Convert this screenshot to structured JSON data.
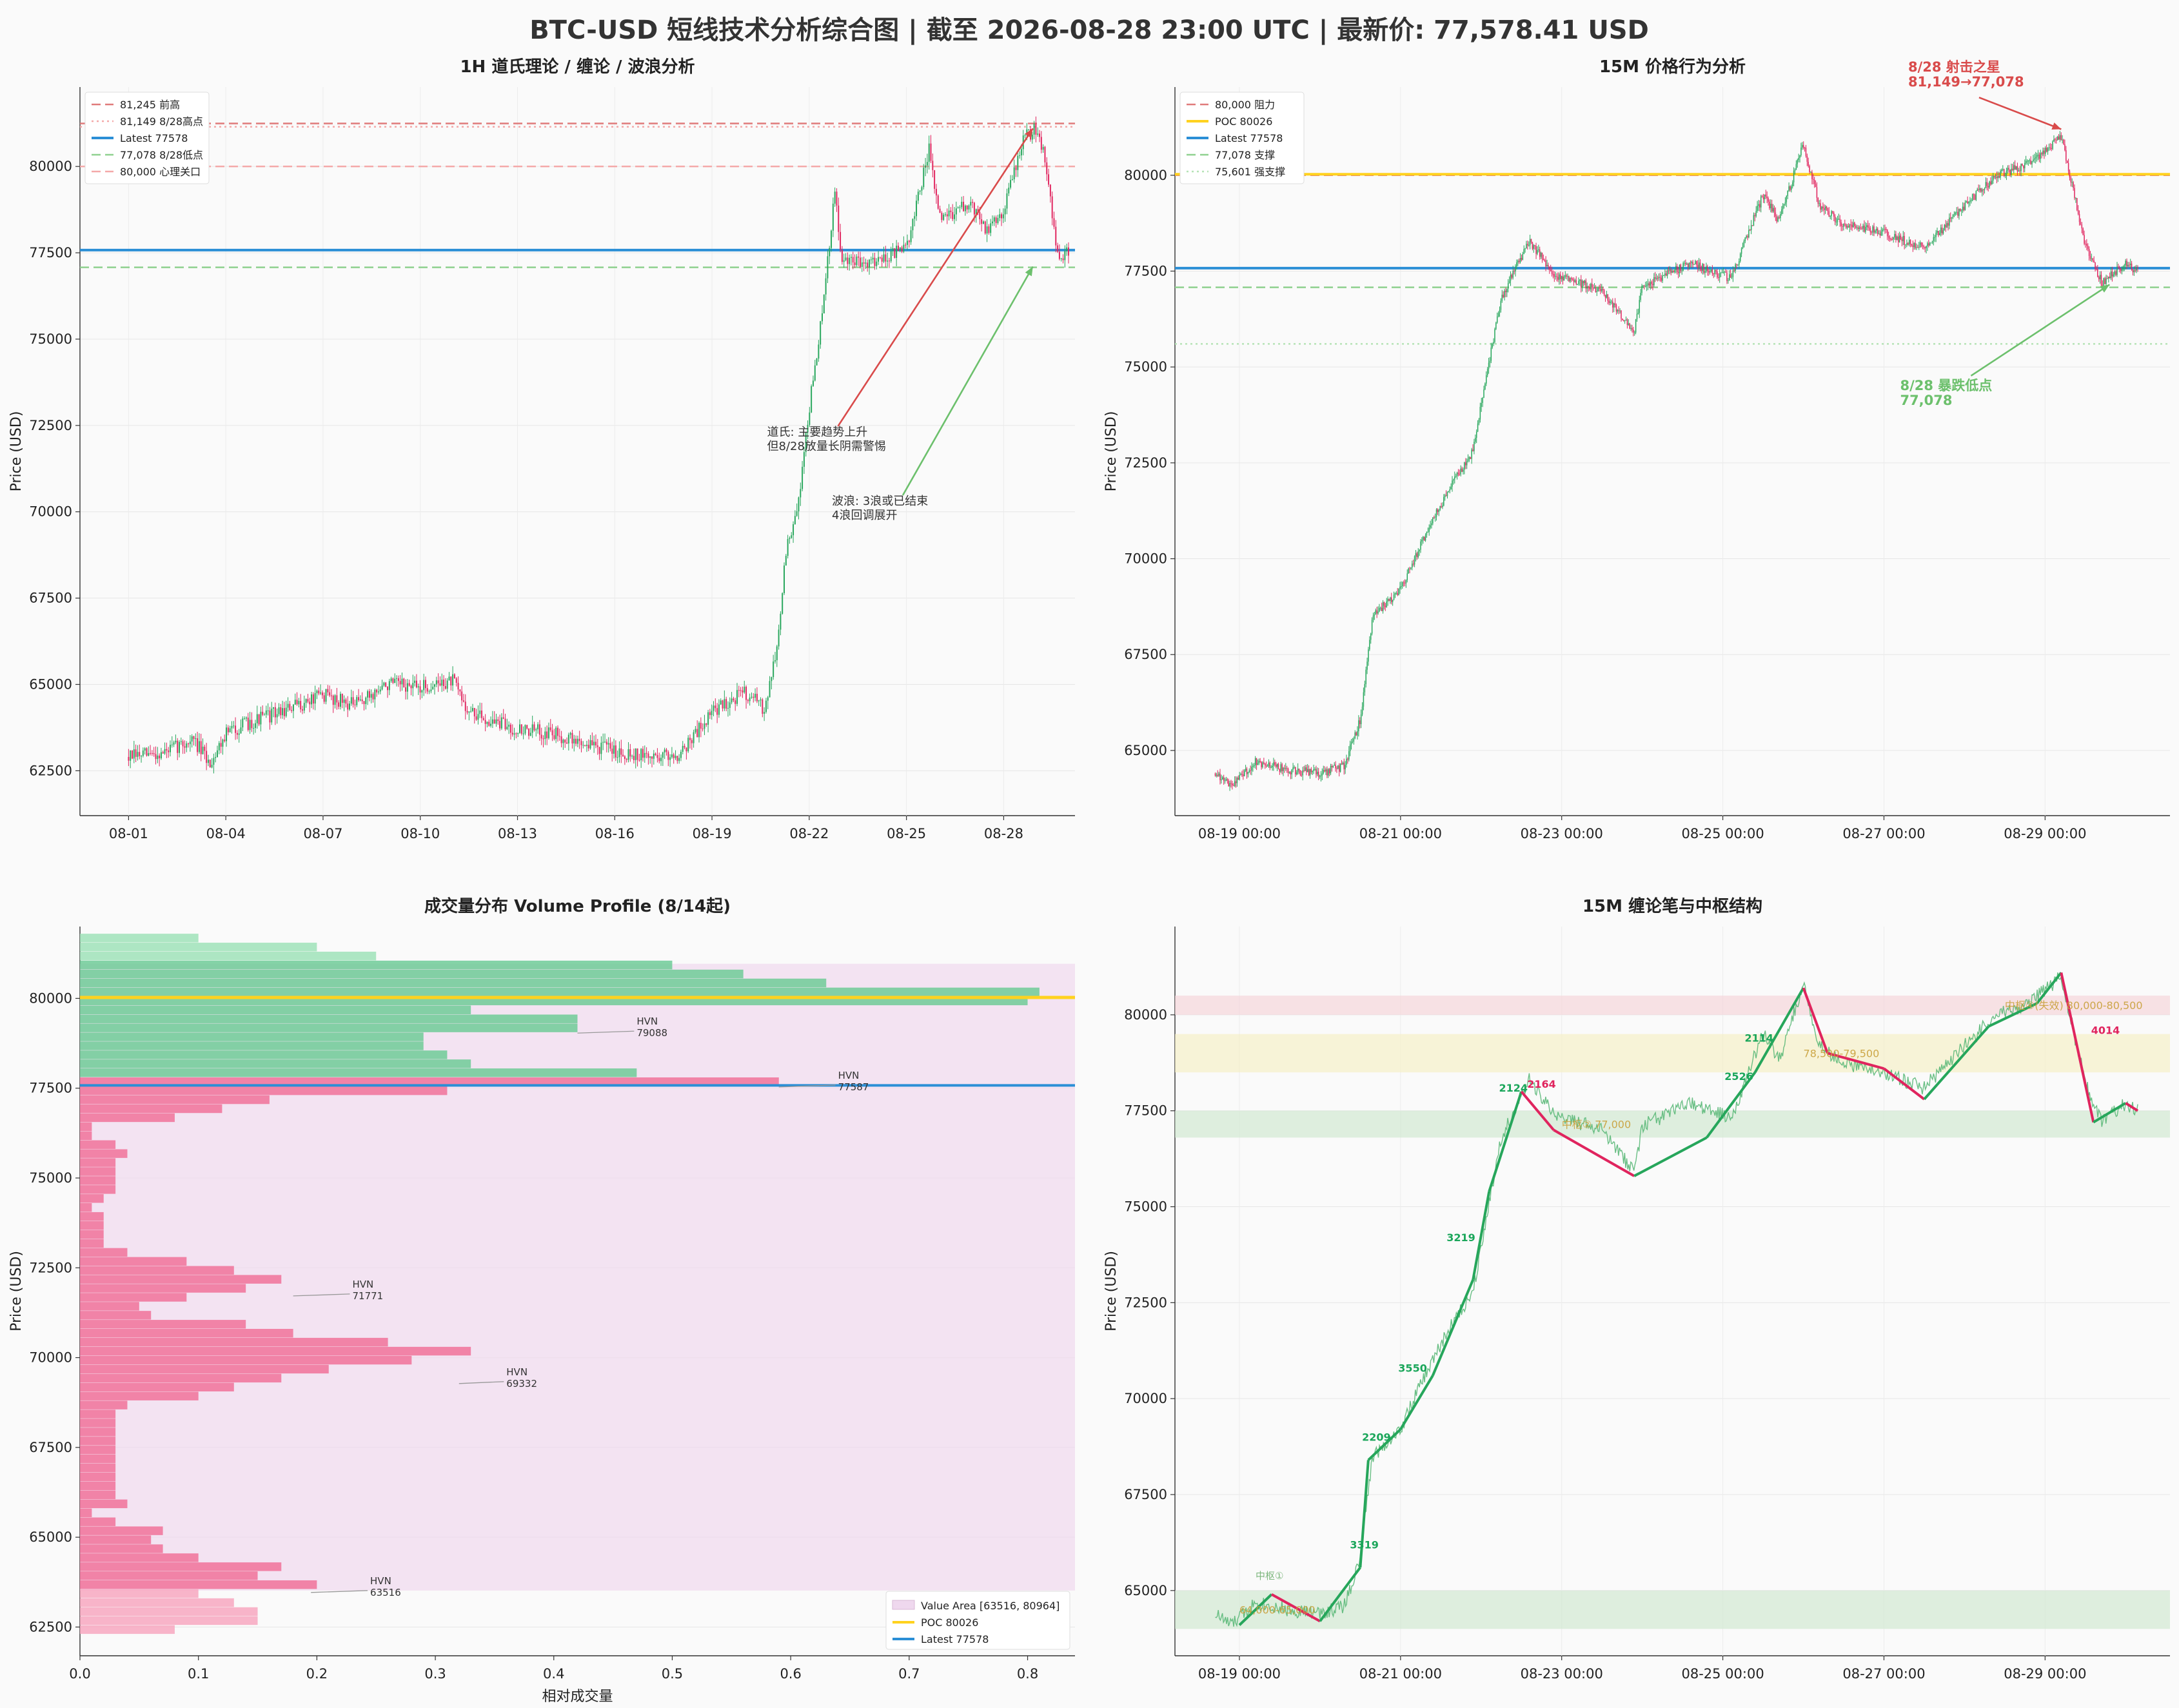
{
  "title": "BTC-USD 短线技术分析综合图 | 截至 2026-08-28 23:00 UTC | 最新价: 77,578.41 USD",
  "colors": {
    "up": "#26a65b",
    "down": "#e0245e",
    "latest": "#2b8fd6",
    "resistance": "#e07b7b",
    "support": "#8fd18f",
    "poc": "#ffd21f",
    "value_area": "#efd8ee"
  },
  "chart_data": [
    {
      "id": "p1",
      "type": "candlestick",
      "title": "1H 道氏理论 / 缠论 / 波浪分析",
      "ylabel": "Price (USD)",
      "ylim": [
        61200,
        82300
      ],
      "yticks": [
        62500,
        65000,
        67500,
        70000,
        72500,
        75000,
        77500,
        80000
      ],
      "xticks": [
        "08-01",
        "08-04",
        "08-07",
        "08-10",
        "08-13",
        "08-16",
        "08-19",
        "08-22",
        "08-25",
        "08-28"
      ],
      "x_range_days": [
        -1.5,
        29.2
      ],
      "price_path": [
        [
          0,
          62900
        ],
        [
          1,
          63000
        ],
        [
          2,
          63400
        ],
        [
          2.5,
          62700
        ],
        [
          3,
          63600
        ],
        [
          4,
          64000
        ],
        [
          5,
          64300
        ],
        [
          6,
          64700
        ],
        [
          7,
          64400
        ],
        [
          8,
          65000
        ],
        [
          9,
          64900
        ],
        [
          10,
          65100
        ],
        [
          10.5,
          64200
        ],
        [
          11,
          64000
        ],
        [
          12,
          63700
        ],
        [
          13,
          63600
        ],
        [
          14,
          63300
        ],
        [
          15,
          63100
        ],
        [
          16,
          62900
        ],
        [
          17,
          63000
        ],
        [
          18,
          64200
        ],
        [
          19,
          64800
        ],
        [
          19.6,
          64300
        ],
        [
          20,
          66000
        ],
        [
          20.3,
          69000
        ],
        [
          20.6,
          69800
        ],
        [
          21,
          73000
        ],
        [
          21.4,
          75700
        ],
        [
          21.8,
          79300
        ],
        [
          22,
          77200
        ],
        [
          23,
          77300
        ],
        [
          24,
          77600
        ],
        [
          24.7,
          80500
        ],
        [
          25,
          78500
        ],
        [
          26,
          78900
        ],
        [
          26.5,
          78100
        ],
        [
          27,
          78800
        ],
        [
          27.6,
          80800
        ],
        [
          28,
          81100
        ],
        [
          28.3,
          80200
        ],
        [
          28.7,
          77100
        ],
        [
          29,
          77578
        ]
      ],
      "hlines": [
        {
          "value": 81245,
          "label": "81,245 前高",
          "style": "dash",
          "color": "#e07b7b"
        },
        {
          "value": 81149,
          "label": "81,149 8/28高点",
          "style": "dot",
          "color": "#f4a9a9"
        },
        {
          "value": 77578,
          "label": "Latest 77578",
          "style": "solid",
          "color": "#2b8fd6"
        },
        {
          "value": 77078,
          "label": "77,078 8/28低点",
          "style": "dash",
          "color": "#8fd18f"
        },
        {
          "value": 80000,
          "label": "80,000 心理关口",
          "style": "dash",
          "color": "#f4a9a9"
        }
      ],
      "annotations": [
        {
          "text": [
            "道氏: 主要趋势上升",
            "但8/28放量长阴需警惕"
          ],
          "x": 19.7,
          "y": 72200,
          "arrow_to": [
            27.9,
            81100
          ],
          "arrow_color": "#d94b4b"
        },
        {
          "text": [
            "波浪: 3浪或已结束",
            "4浪回调展开"
          ],
          "x": 21.7,
          "y": 70200,
          "arrow_to": [
            27.9,
            77100
          ],
          "arrow_color": "#6cc06c"
        }
      ]
    },
    {
      "id": "p2",
      "type": "candlestick",
      "title": "15M 价格行为分析",
      "ylabel": "Price (USD)",
      "ylim": [
        63300,
        82300
      ],
      "yticks": [
        65000,
        67500,
        70000,
        72500,
        75000,
        77500,
        80000
      ],
      "xticks": [
        "08-19 00:00",
        "08-21 00:00",
        "08-23 00:00",
        "08-25 00:00",
        "08-27 00:00",
        "08-29 00:00"
      ],
      "x_range_days": [
        17.2,
        29.55
      ],
      "price_path": [
        [
          17.7,
          64400
        ],
        [
          17.9,
          64100
        ],
        [
          18.2,
          64700
        ],
        [
          18.6,
          64500
        ],
        [
          19.0,
          64400
        ],
        [
          19.3,
          64600
        ],
        [
          19.5,
          65800
        ],
        [
          19.65,
          68500
        ],
        [
          20.0,
          69200
        ],
        [
          20.3,
          70600
        ],
        [
          20.6,
          71800
        ],
        [
          20.9,
          72800
        ],
        [
          21.0,
          74000
        ],
        [
          21.25,
          76800
        ],
        [
          21.6,
          78300
        ],
        [
          21.9,
          77400
        ],
        [
          22.5,
          77000
        ],
        [
          22.9,
          75900
        ],
        [
          23.0,
          77100
        ],
        [
          23.6,
          77700
        ],
        [
          24.1,
          77300
        ],
        [
          24.5,
          79500
        ],
        [
          24.7,
          78800
        ],
        [
          25.0,
          80800
        ],
        [
          25.2,
          79200
        ],
        [
          25.5,
          78700
        ],
        [
          26.0,
          78500
        ],
        [
          26.5,
          78100
        ],
        [
          27.0,
          79200
        ],
        [
          27.4,
          80000
        ],
        [
          27.8,
          80300
        ],
        [
          28.2,
          81000
        ],
        [
          28.5,
          78200
        ],
        [
          28.7,
          77200
        ],
        [
          29.0,
          77700
        ],
        [
          29.15,
          77500
        ]
      ],
      "hlines": [
        {
          "value": 80000,
          "label": "80,000 阻力",
          "style": "dash",
          "color": "#e07b7b"
        },
        {
          "value": 80026,
          "label": "POC 80026",
          "style": "solid",
          "color": "#ffd21f"
        },
        {
          "value": 77578,
          "label": "Latest 77578",
          "style": "solid",
          "color": "#2b8fd6"
        },
        {
          "value": 77078,
          "label": "77,078 支撑",
          "style": "dash",
          "color": "#8fd18f"
        },
        {
          "value": 75601,
          "label": "75,601 强支撑",
          "style": "dot",
          "color": "#b6e3b6"
        }
      ],
      "annotations": [
        {
          "text": [
            "8/28 射击之星",
            "81,149→77,078"
          ],
          "x": 26.3,
          "y": 82700,
          "arrow_to": [
            28.2,
            81200
          ],
          "color": "#d94b4b",
          "bold": true
        },
        {
          "text": [
            "8/28 暴跌低点",
            "77,078"
          ],
          "x": 26.2,
          "y": 74400,
          "arrow_to": [
            28.8,
            77150
          ],
          "color": "#6cc06c",
          "bold": true
        }
      ]
    },
    {
      "id": "p3",
      "type": "volume_profile",
      "title": "成交量分布 Volume Profile (8/14起)",
      "ylabel": "Price (USD)",
      "xlabel": "相对成交量",
      "xlim": [
        0,
        0.84
      ],
      "xticks": [
        0.0,
        0.1,
        0.2,
        0.3,
        0.4,
        0.5,
        0.6,
        0.7,
        0.8
      ],
      "ylim": [
        61700,
        82000
      ],
      "yticks": [
        62500,
        65000,
        67500,
        70000,
        72500,
        75000,
        77500,
        80000
      ],
      "bin_size": 250,
      "value_area": [
        63516,
        80964
      ],
      "poc": 80026,
      "latest": 77578,
      "bins": [
        [
          62300,
          0.08
        ],
        [
          62550,
          0.15
        ],
        [
          62800,
          0.15
        ],
        [
          63050,
          0.13
        ],
        [
          63300,
          0.1
        ],
        [
          63550,
          0.2
        ],
        [
          63800,
          0.15
        ],
        [
          64050,
          0.17
        ],
        [
          64300,
          0.1
        ],
        [
          64550,
          0.07
        ],
        [
          64800,
          0.06
        ],
        [
          65050,
          0.07
        ],
        [
          65300,
          0.03
        ],
        [
          65550,
          0.01
        ],
        [
          65800,
          0.04
        ],
        [
          66050,
          0.03
        ],
        [
          66300,
          0.03
        ],
        [
          66550,
          0.03
        ],
        [
          66800,
          0.03
        ],
        [
          67050,
          0.03
        ],
        [
          67300,
          0.03
        ],
        [
          67550,
          0.03
        ],
        [
          67800,
          0.03
        ],
        [
          68050,
          0.03
        ],
        [
          68300,
          0.03
        ],
        [
          68550,
          0.04
        ],
        [
          68800,
          0.1
        ],
        [
          69050,
          0.13
        ],
        [
          69300,
          0.17
        ],
        [
          69550,
          0.21
        ],
        [
          69800,
          0.28
        ],
        [
          70050,
          0.33
        ],
        [
          70300,
          0.26
        ],
        [
          70550,
          0.18
        ],
        [
          70800,
          0.14
        ],
        [
          71050,
          0.06
        ],
        [
          71300,
          0.05
        ],
        [
          71550,
          0.09
        ],
        [
          71800,
          0.14
        ],
        [
          72050,
          0.17
        ],
        [
          72300,
          0.13
        ],
        [
          72550,
          0.09
        ],
        [
          72800,
          0.04
        ],
        [
          73050,
          0.02
        ],
        [
          73300,
          0.02
        ],
        [
          73550,
          0.02
        ],
        [
          73800,
          0.02
        ],
        [
          74050,
          0.01
        ],
        [
          74300,
          0.02
        ],
        [
          74550,
          0.03
        ],
        [
          74800,
          0.03
        ],
        [
          75050,
          0.03
        ],
        [
          75300,
          0.03
        ],
        [
          75550,
          0.04
        ],
        [
          75800,
          0.03
        ],
        [
          76050,
          0.01
        ],
        [
          76300,
          0.01
        ],
        [
          76550,
          0.08
        ],
        [
          76800,
          0.12
        ],
        [
          77050,
          0.16
        ],
        [
          77300,
          0.31
        ],
        [
          77550,
          0.59
        ],
        [
          77800,
          0.47
        ],
        [
          78050,
          0.33
        ],
        [
          78300,
          0.31
        ],
        [
          78550,
          0.29
        ],
        [
          78800,
          0.29
        ],
        [
          79050,
          0.42
        ],
        [
          79300,
          0.42
        ],
        [
          79550,
          0.33
        ],
        [
          79800,
          0.8
        ],
        [
          80050,
          0.81
        ],
        [
          80300,
          0.63
        ],
        [
          80550,
          0.56
        ],
        [
          80800,
          0.5
        ],
        [
          81050,
          0.25
        ],
        [
          81300,
          0.2
        ],
        [
          81550,
          0.1
        ]
      ],
      "hvn": [
        {
          "price": 79088,
          "label": [
            "HVN",
            "79088"
          ]
        },
        {
          "price": 77587,
          "label": [
            "HVN",
            "77587"
          ]
        },
        {
          "price": 71771,
          "label": [
            "HVN",
            "71771"
          ]
        },
        {
          "price": 69332,
          "label": [
            "HVN",
            "69332"
          ]
        },
        {
          "price": 63516,
          "label": [
            "HVN",
            "63516"
          ]
        }
      ],
      "legend": {
        "placement": "lower-right",
        "entries": [
          "Value Area [63516, 80964]",
          "POC 80026",
          "Latest 77578"
        ]
      }
    },
    {
      "id": "p4",
      "type": "line_with_strokes",
      "title": "15M 缠论笔与中枢结构",
      "ylabel": "Price (USD)",
      "ylim": [
        63300,
        82300
      ],
      "yticks": [
        65000,
        67500,
        70000,
        72500,
        75000,
        77500,
        80000
      ],
      "xticks": [
        "08-19 00:00",
        "08-21 00:00",
        "08-23 00:00",
        "08-25 00:00",
        "08-27 00:00",
        "08-29 00:00"
      ],
      "x_range_days": [
        17.2,
        29.55
      ],
      "zones": [
        {
          "y": [
            64000,
            65000
          ],
          "color": "#cfe8cf",
          "label": "64,000-65,000",
          "label_x": 18.0
        },
        {
          "y": [
            76800,
            77500
          ],
          "color": "#cfe8cf",
          "label": "中枢② 77,000",
          "label_x": 22.0
        },
        {
          "y": [
            78500,
            79500
          ],
          "color": "#f6efc4",
          "label": "78,500-79,500",
          "label_x": 25.0
        },
        {
          "y": [
            80000,
            80500
          ],
          "color": "#f6d4d8",
          "label": "中枢④(失效) 80,000-80,500",
          "label_x": 27.5
        }
      ],
      "zone_head_label": "中枢①",
      "strokes": [
        [
          18.0,
          64100,
          "down"
        ],
        [
          18.4,
          64900,
          "up"
        ],
        [
          19.0,
          64200,
          "down"
        ],
        [
          19.5,
          65600,
          "up"
        ],
        [
          19.6,
          68400,
          "up"
        ],
        [
          20.0,
          69200,
          "up"
        ],
        [
          20.4,
          70600,
          "up"
        ],
        [
          20.9,
          73100,
          "up"
        ],
        [
          21.1,
          75400,
          "up"
        ],
        [
          21.5,
          78000,
          "up"
        ],
        [
          21.9,
          77000,
          "down"
        ],
        [
          22.9,
          75800,
          "down"
        ],
        [
          23.8,
          76800,
          "up"
        ],
        [
          24.4,
          78500,
          "up"
        ],
        [
          25.0,
          80700,
          "up"
        ],
        [
          25.3,
          79000,
          "down"
        ],
        [
          26.0,
          78600,
          "down"
        ],
        [
          26.5,
          77800,
          "down"
        ],
        [
          27.3,
          79700,
          "up"
        ],
        [
          27.9,
          80300,
          "up"
        ],
        [
          28.2,
          81100,
          "up"
        ],
        [
          28.6,
          77200,
          "down"
        ],
        [
          29.0,
          77700,
          "up"
        ],
        [
          29.15,
          77500,
          "down"
        ]
      ],
      "stroke_labels": [
        {
          "text": "3319",
          "x": 19.55,
          "y": 66100,
          "color": "#1aa65a"
        },
        {
          "text": "2209",
          "x": 19.7,
          "y": 68900,
          "color": "#1aa65a"
        },
        {
          "text": "3550",
          "x": 20.15,
          "y": 70700,
          "color": "#1aa65a"
        },
        {
          "text": "3219",
          "x": 20.75,
          "y": 74100,
          "color": "#1aa65a"
        },
        {
          "text": "2124",
          "x": 21.4,
          "y": 78000,
          "color": "#1aa65a"
        },
        {
          "text": "2164",
          "x": 21.75,
          "y": 78100,
          "color": "#e0245e"
        },
        {
          "text": "2526",
          "x": 24.2,
          "y": 78300,
          "color": "#1aa65a"
        },
        {
          "text": "2114",
          "x": 24.45,
          "y": 79300,
          "color": "#1aa65a"
        },
        {
          "text": "4014",
          "x": 28.75,
          "y": 79500,
          "color": "#e0245e"
        }
      ]
    }
  ]
}
